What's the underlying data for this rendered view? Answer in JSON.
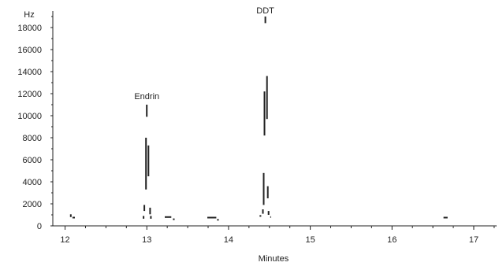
{
  "chart_data": {
    "type": "line",
    "title": "",
    "xlabel": "Minutes",
    "ylabel": "Hz",
    "xlim": [
      11.85,
      17.28
    ],
    "ylim": [
      0,
      19500
    ],
    "x_ticks": [
      12,
      13,
      14,
      15,
      16,
      17
    ],
    "y_ticks": [
      0,
      2000,
      4000,
      6000,
      8000,
      10000,
      12000,
      14000,
      16000,
      18000
    ],
    "grid": false,
    "legend": "none",
    "line_color": "#222222",
    "annotations": [
      {
        "text": "Endrin",
        "x": 13.0,
        "y": 11500
      },
      {
        "text": "DDT",
        "x": 14.45,
        "y": 19300
      }
    ],
    "series": [
      {
        "segments": [
          {
            "x": [
              12.07,
              12.07
            ],
            "y": [
              800,
              1050
            ]
          },
          {
            "x": [
              12.09,
              12.12
            ],
            "y": [
              750,
              750
            ]
          },
          {
            "x": [
              12.96,
              12.96
            ],
            "y": [
              650,
              900
            ]
          },
          {
            "x": [
              12.97,
              12.97
            ],
            "y": [
              1350,
              1900
            ]
          },
          {
            "x": [
              12.99,
              12.99
            ],
            "y": [
              3300,
              8000
            ]
          },
          {
            "x": [
              13.0,
              13.0
            ],
            "y": [
              9900,
              11000
            ]
          },
          {
            "x": [
              13.02,
              13.02
            ],
            "y": [
              4500,
              7300
            ]
          },
          {
            "x": [
              13.04,
              13.04
            ],
            "y": [
              1050,
              1650
            ]
          },
          {
            "x": [
              13.05,
              13.05
            ],
            "y": [
              650,
              900
            ]
          },
          {
            "x": [
              13.22,
              13.3
            ],
            "y": [
              800,
              800
            ]
          },
          {
            "x": [
              13.32,
              13.34
            ],
            "y": [
              600,
              600
            ]
          },
          {
            "x": [
              13.74,
              13.85
            ],
            "y": [
              750,
              750
            ]
          },
          {
            "x": [
              13.86,
              13.88
            ],
            "y": [
              550,
              550
            ]
          },
          {
            "x": [
              14.38,
              14.4
            ],
            "y": [
              900,
              900
            ]
          },
          {
            "x": [
              14.42,
              14.42
            ],
            "y": [
              1100,
              1500
            ]
          },
          {
            "x": [
              14.43,
              14.43
            ],
            "y": [
              1900,
              4800
            ]
          },
          {
            "x": [
              14.44,
              14.44
            ],
            "y": [
              8200,
              12200
            ]
          },
          {
            "x": [
              14.45,
              14.45
            ],
            "y": [
              18400,
              19000
            ]
          },
          {
            "x": [
              14.47,
              14.47
            ],
            "y": [
              9700,
              13600
            ]
          },
          {
            "x": [
              14.48,
              14.48
            ],
            "y": [
              2500,
              3600
            ]
          },
          {
            "x": [
              14.49,
              14.49
            ],
            "y": [
              1000,
              1350
            ]
          },
          {
            "x": [
              14.51,
              14.52
            ],
            "y": [
              800,
              800
            ]
          },
          {
            "x": [
              16.63,
              16.68
            ],
            "y": [
              750,
              750
            ]
          }
        ]
      }
    ]
  }
}
